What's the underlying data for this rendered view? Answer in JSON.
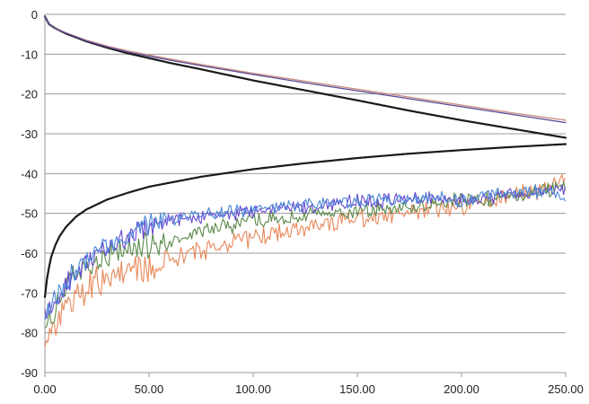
{
  "chart_data": {
    "type": "line",
    "title": "",
    "xlabel": "",
    "ylabel": "",
    "xlim": [
      0,
      250
    ],
    "ylim": [
      -90,
      0
    ],
    "x_ticks": [
      0,
      50,
      100,
      150,
      200,
      250
    ],
    "x_tick_labels": [
      "0.00",
      "50.00",
      "100.00",
      "150.00",
      "200.00",
      "250.00"
    ],
    "y_ticks": [
      0,
      -10,
      -20,
      -30,
      -40,
      -50,
      -60,
      -70,
      -80,
      -90
    ],
    "y_tick_labels": [
      "0",
      "-10",
      "-20",
      "-30",
      "-40",
      "-50",
      "-60",
      "-70",
      "-80",
      "-90"
    ],
    "grid": "horizontal",
    "legend": "none",
    "series": [
      {
        "color": "#1a1a1a",
        "width": 2.2,
        "style": "smooth",
        "x": [
          0,
          2,
          5,
          10,
          20,
          30,
          40,
          50,
          60,
          75,
          100,
          125,
          150,
          175,
          200,
          225,
          250
        ],
        "values": [
          -0.5,
          -2.5,
          -3.5,
          -4.8,
          -6.8,
          -8.4,
          -9.8,
          -11.0,
          -12.2,
          -13.8,
          -16.6,
          -19.1,
          -21.6,
          -24.2,
          -26.6,
          -28.8,
          -31.0
        ]
      },
      {
        "color": "#1a1a1a",
        "width": 2.2,
        "style": "smooth",
        "x": [
          0,
          1,
          2,
          3,
          5,
          7,
          10,
          15,
          20,
          30,
          40,
          50,
          75,
          100,
          125,
          150,
          175,
          200,
          225,
          250
        ],
        "values": [
          -71.0,
          -66.5,
          -63.5,
          -61.0,
          -58.0,
          -55.8,
          -53.5,
          -50.8,
          -49.0,
          -46.5,
          -44.8,
          -43.3,
          -40.8,
          -38.9,
          -37.4,
          -36.1,
          -35.0,
          -34.1,
          -33.3,
          -32.6
        ]
      },
      {
        "color": "#c98a7e",
        "width": 1.3,
        "style": "smooth",
        "x": [
          0,
          2,
          5,
          10,
          20,
          30,
          40,
          50,
          60,
          75,
          100,
          125,
          150,
          175,
          200,
          225,
          250
        ],
        "values": [
          -0.5,
          -2.5,
          -3.5,
          -4.6,
          -6.5,
          -8.0,
          -9.2,
          -10.2,
          -11.2,
          -12.6,
          -14.8,
          -16.8,
          -18.8,
          -20.8,
          -22.8,
          -24.8,
          -26.6
        ]
      },
      {
        "color": "#5a4a9a",
        "width": 1.3,
        "style": "smooth",
        "x": [
          0,
          2,
          5,
          10,
          20,
          30,
          40,
          50,
          60,
          75,
          100,
          125,
          150,
          175,
          200,
          225,
          250
        ],
        "values": [
          -0.5,
          -2.5,
          -3.6,
          -4.7,
          -6.7,
          -8.2,
          -9.5,
          -10.5,
          -11.5,
          -12.9,
          -15.1,
          -17.2,
          -19.2,
          -21.2,
          -23.2,
          -25.2,
          -27.2
        ]
      },
      {
        "color": "#e8885a",
        "width": 1.1,
        "style": "noisy",
        "noise": 2.2,
        "x": [
          0,
          3,
          5,
          10,
          15,
          20,
          30,
          40,
          50,
          60,
          70,
          80,
          90,
          100,
          110,
          120,
          130,
          140,
          150,
          160,
          170,
          180,
          190,
          200,
          210,
          220,
          230,
          240,
          250
        ],
        "values": [
          -82,
          -80,
          -77,
          -74,
          -72,
          -69,
          -66,
          -65,
          -64,
          -62,
          -60,
          -58.5,
          -57,
          -56,
          -55,
          -54,
          -53,
          -52,
          -51,
          -50.5,
          -50,
          -49.5,
          -49,
          -48.5,
          -47.5,
          -46.5,
          -45,
          -43.5,
          -42
        ]
      },
      {
        "color": "#5a8a4a",
        "width": 1.1,
        "style": "noisy",
        "noise": 1.8,
        "x": [
          0,
          3,
          5,
          10,
          15,
          20,
          30,
          40,
          50,
          60,
          70,
          80,
          90,
          100,
          110,
          120,
          130,
          140,
          150,
          160,
          170,
          180,
          190,
          200,
          210,
          220,
          230,
          240,
          250
        ],
        "values": [
          -79,
          -76,
          -73,
          -69,
          -66,
          -64,
          -61,
          -59,
          -58,
          -57,
          -55.5,
          -54,
          -53,
          -52,
          -51.5,
          -51,
          -50.5,
          -50,
          -49.5,
          -49,
          -48.5,
          -48,
          -47.5,
          -47,
          -46.5,
          -46,
          -45,
          -44,
          -43
        ]
      },
      {
        "color": "#6a4ad0",
        "width": 1.1,
        "style": "noisy",
        "noise": 1.5,
        "x": [
          0,
          3,
          5,
          10,
          15,
          20,
          30,
          40,
          50,
          60,
          70,
          80,
          90,
          100,
          110,
          120,
          130,
          140,
          150,
          160,
          170,
          180,
          190,
          200,
          210,
          220,
          230,
          240,
          250
        ],
        "values": [
          -77,
          -74,
          -72,
          -68,
          -65,
          -62.5,
          -58.5,
          -55.5,
          -53.5,
          -52,
          -51,
          -50.5,
          -50,
          -49.5,
          -49,
          -48.5,
          -48,
          -47.5,
          -47,
          -47,
          -46.5,
          -46,
          -46,
          -46.5,
          -46,
          -45.5,
          -45,
          -44.5,
          -44
        ]
      },
      {
        "color": "#4a86d8",
        "width": 1.1,
        "style": "noisy",
        "noise": 1.5,
        "x": [
          0,
          3,
          5,
          10,
          15,
          20,
          30,
          40,
          50,
          60,
          70,
          80,
          90,
          100,
          110,
          120,
          130,
          140,
          150,
          160,
          170,
          180,
          190,
          200,
          210,
          220,
          230,
          240,
          250
        ],
        "values": [
          -76,
          -73,
          -71,
          -67.5,
          -64.5,
          -62,
          -58,
          -55,
          -53,
          -51.5,
          -50.5,
          -50,
          -49.5,
          -49,
          -48.5,
          -48,
          -47.5,
          -47,
          -47,
          -46.5,
          -46.5,
          -46,
          -46,
          -47,
          -46,
          -45,
          -44.5,
          -44.5,
          -46
        ]
      }
    ]
  }
}
